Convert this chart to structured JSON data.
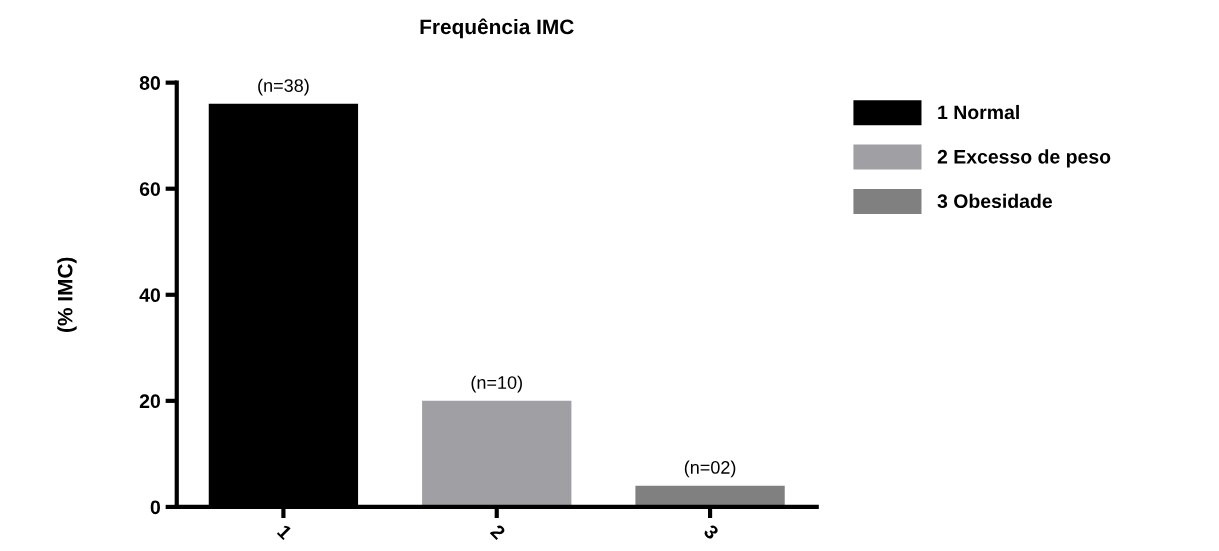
{
  "chart_data": {
    "type": "bar",
    "title": "Frequência IMC",
    "ylabel": "(% IMC)",
    "categories": [
      "1",
      "2",
      "3"
    ],
    "series": [
      {
        "name": "1 Normal",
        "color": "#000000",
        "values": [
          76,
          null,
          null
        ]
      },
      {
        "name": "2 Excesso de peso",
        "color": "#a0a0a4",
        "values": [
          null,
          20,
          null
        ]
      },
      {
        "name": "3 Obesidade",
        "color": "#808080",
        "values": [
          null,
          null,
          4
        ]
      }
    ],
    "annotations": [
      {
        "text": "(n=38)",
        "x": "1",
        "y": 76
      },
      {
        "text": "(n=10)",
        "x": "2",
        "y": 20
      },
      {
        "text": "(n=02)",
        "x": "3",
        "y": 4
      }
    ],
    "ylim": [
      0,
      80
    ],
    "yticks": [
      0,
      20,
      40,
      60,
      80
    ],
    "grid": false,
    "legend": "right"
  }
}
